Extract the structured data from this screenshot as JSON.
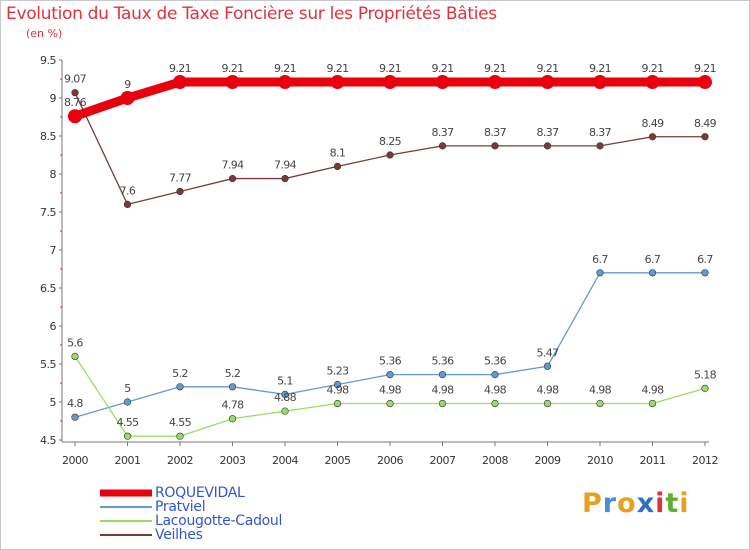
{
  "header": {
    "title": "Evolution du Taux de Taxe Foncière sur les Propriétés Bâties",
    "unit": "(en %)"
  },
  "logo": {
    "text": "Proxiti",
    "colors": [
      "#e8a020",
      "#4a90d0",
      "#e8a020",
      "#3070c0",
      "#e0323c",
      "#60b030",
      "#e8a020"
    ]
  },
  "chart_data": {
    "type": "line",
    "x": [
      "2000",
      "2001",
      "2002",
      "2003",
      "2004",
      "2005",
      "2006",
      "2007",
      "2008",
      "2009",
      "2010",
      "2011",
      "2012"
    ],
    "ylim": [
      4.5,
      9.5
    ],
    "yticks": [
      "4.5",
      "5",
      "5.5",
      "6",
      "6.5",
      "7",
      "7.5",
      "8",
      "8.5",
      "9",
      "9.5"
    ],
    "grid": false,
    "legend_position": "bottom-left",
    "series": [
      {
        "name": "ROQUEVIDAL",
        "color": "#e8000d",
        "values": [
          8.76,
          9,
          9.21,
          9.21,
          9.21,
          9.21,
          9.21,
          9.21,
          9.21,
          9.21,
          9.21,
          9.21,
          9.21
        ],
        "labels": [
          "8.76",
          "9",
          "9.21",
          "9.21",
          "9.21",
          "9.21",
          "9.21",
          "9.21",
          "9.21",
          "9.21",
          "9.21",
          "9.21",
          "9.21"
        ]
      },
      {
        "name": "Pratviel",
        "color": "#6699cc",
        "values": [
          4.8,
          5,
          5.2,
          5.2,
          5.1,
          5.23,
          5.36,
          5.36,
          5.36,
          5.47,
          6.7,
          6.7,
          6.7
        ],
        "labels": [
          "4.8",
          "5",
          "5.2",
          "5.2",
          "5.1",
          "5.23",
          "5.36",
          "5.36",
          "5.36",
          "5.47",
          "6.7",
          "6.7",
          "6.7"
        ]
      },
      {
        "name": "Lacougotte-Cadoul",
        "color": "#99dd66",
        "values": [
          5.6,
          4.55,
          4.55,
          4.78,
          4.88,
          4.98,
          4.98,
          4.98,
          4.98,
          4.98,
          4.98,
          4.98,
          5.18
        ],
        "labels": [
          "5.6",
          "4.55",
          "4.55",
          "4.78",
          "4.88",
          "4.98",
          "4.98",
          "4.98",
          "4.98",
          "4.98",
          "4.98",
          "4.98",
          "5.18"
        ]
      },
      {
        "name": "Veilhes",
        "color": "#7a3a3a",
        "values": [
          9.07,
          7.6,
          7.77,
          7.94,
          7.94,
          8.1,
          8.25,
          8.37,
          8.37,
          8.37,
          8.37,
          8.49,
          8.49
        ],
        "labels": [
          "9.07",
          "7.6",
          "7.77",
          "7.94",
          "7.94",
          "8.1",
          "8.25",
          "8.37",
          "8.37",
          "8.37",
          "8.37",
          "8.49",
          "8.49"
        ]
      }
    ]
  }
}
